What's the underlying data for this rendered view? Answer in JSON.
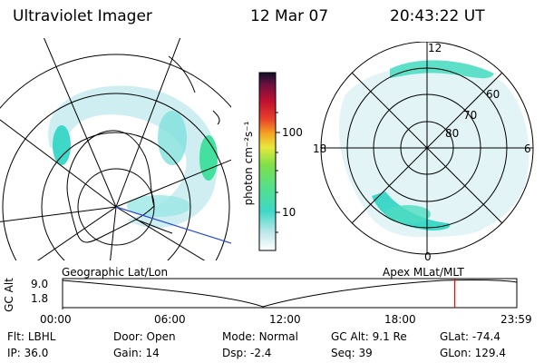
{
  "header": {
    "instrument": "Ultraviolet Imager",
    "date": "12 Mar 07",
    "time": "20:43:22 UT"
  },
  "colorbar": {
    "unit_label": "photon cm⁻²s⁻¹",
    "ticks": [
      "100",
      "10"
    ]
  },
  "polar_plot": {
    "mlt_labels": [
      "12",
      "6",
      "0",
      "18"
    ],
    "lat_labels": [
      "60",
      "70",
      "80"
    ]
  },
  "timeline": {
    "left_title": "Geographic Lat/Lon",
    "right_title": "Apex MLat/MLT",
    "ylabel": "GC Alt",
    "y_ticks": [
      "9.0",
      "1.8"
    ],
    "x_ticks": [
      "00:00",
      "06:00",
      "12:00",
      "18:00",
      "23:59"
    ],
    "current_time_fraction": 0.8635
  },
  "info": {
    "row1": [
      {
        "label": "Flt:",
        "value": "LBHL"
      },
      {
        "label": "Door:",
        "value": "Open"
      },
      {
        "label": "Mode:",
        "value": "Normal"
      },
      {
        "label": "GC Alt:",
        "value": "9.1 Re"
      },
      {
        "label": "GLat:",
        "value": "-74.4"
      }
    ],
    "row2": [
      {
        "label": "IP:",
        "value": "36.0"
      },
      {
        "label": "Gain:",
        "value": "14"
      },
      {
        "label": "Dsp:",
        "value": "-2.4"
      },
      {
        "label": "Seq:",
        "value": "39"
      },
      {
        "label": "GLon:",
        "value": "129.4"
      }
    ]
  }
}
